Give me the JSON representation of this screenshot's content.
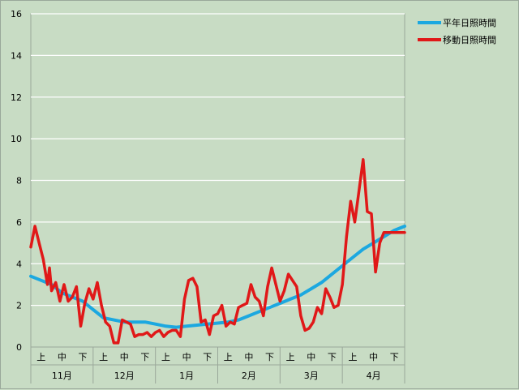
{
  "chart_data": {
    "type": "line",
    "title": "",
    "xlabel": "",
    "ylabel": "",
    "ylim": [
      0,
      16
    ],
    "yticks": [
      "0",
      "2",
      "4",
      "6",
      "8",
      "10",
      "12",
      "14",
      "16"
    ],
    "grid": "horizontal",
    "legend_position": "top-right",
    "months": [
      "11月",
      "12月",
      "1月",
      "2月",
      "3月",
      "4月"
    ],
    "decades": [
      "上",
      "中",
      "下"
    ],
    "x_range": [
      0,
      180
    ],
    "series": [
      {
        "name": "平年日照時間",
        "color": "#1ca8e0",
        "x": [
          0,
          5,
          10,
          15,
          20,
          25,
          30,
          35,
          40,
          45,
          50,
          55,
          60,
          65,
          70,
          75,
          80,
          85,
          90,
          95,
          100,
          105,
          110,
          115,
          120,
          125,
          130,
          135,
          140,
          145,
          150,
          155,
          160,
          165,
          170,
          175,
          180
        ],
        "values": [
          3.4,
          3.2,
          3.0,
          2.6,
          2.4,
          2.2,
          1.8,
          1.4,
          1.3,
          1.2,
          1.2,
          1.2,
          1.1,
          1.0,
          0.95,
          1.0,
          1.05,
          1.1,
          1.15,
          1.2,
          1.3,
          1.5,
          1.7,
          1.9,
          2.1,
          2.3,
          2.5,
          2.8,
          3.1,
          3.5,
          3.9,
          4.3,
          4.7,
          5.0,
          5.3,
          5.6,
          5.8
        ]
      },
      {
        "name": "移動日照時間",
        "color": "#e01818",
        "x": [
          0,
          2,
          4,
          6,
          8,
          9,
          10,
          12,
          14,
          16,
          18,
          20,
          22,
          24,
          26,
          28,
          30,
          32,
          34,
          36,
          38,
          40,
          42,
          44,
          46,
          48,
          50,
          52,
          54,
          56,
          58,
          60,
          62,
          64,
          66,
          68,
          70,
          72,
          74,
          76,
          78,
          80,
          82,
          84,
          86,
          88,
          90,
          92,
          94,
          96,
          98,
          100,
          102,
          104,
          106,
          108,
          110,
          112,
          114,
          116,
          118,
          120,
          122,
          124,
          126,
          128,
          130,
          132,
          134,
          136,
          138,
          140,
          142,
          144,
          146,
          148,
          150,
          152,
          154,
          156,
          158,
          160,
          162,
          164,
          166,
          168,
          170,
          172,
          174,
          176,
          178,
          180
        ],
        "values": [
          4.8,
          5.8,
          5.0,
          4.2,
          3.0,
          3.8,
          2.7,
          3.1,
          2.2,
          3.0,
          2.2,
          2.4,
          2.9,
          1.0,
          2.1,
          2.8,
          2.3,
          3.1,
          2.0,
          1.2,
          1.0,
          0.2,
          0.2,
          1.3,
          1.2,
          1.1,
          0.5,
          0.6,
          0.6,
          0.7,
          0.5,
          0.7,
          0.8,
          0.5,
          0.7,
          0.8,
          0.8,
          0.5,
          2.3,
          3.2,
          3.3,
          2.9,
          1.2,
          1.3,
          0.6,
          1.5,
          1.6,
          2.0,
          1.0,
          1.2,
          1.1,
          1.9,
          2.0,
          2.1,
          3.0,
          2.4,
          2.2,
          1.5,
          2.9,
          3.8,
          3.0,
          2.2,
          2.7,
          3.5,
          3.2,
          2.9,
          1.5,
          0.8,
          0.9,
          1.2,
          1.9,
          1.6,
          2.8,
          2.4,
          1.9,
          2.0,
          3.0,
          5.3,
          7.0,
          6.0,
          7.5,
          9.0,
          6.5,
          6.4,
          3.6,
          5.0,
          5.5,
          5.5,
          5.5,
          5.5,
          5.5,
          5.5
        ]
      }
    ]
  }
}
